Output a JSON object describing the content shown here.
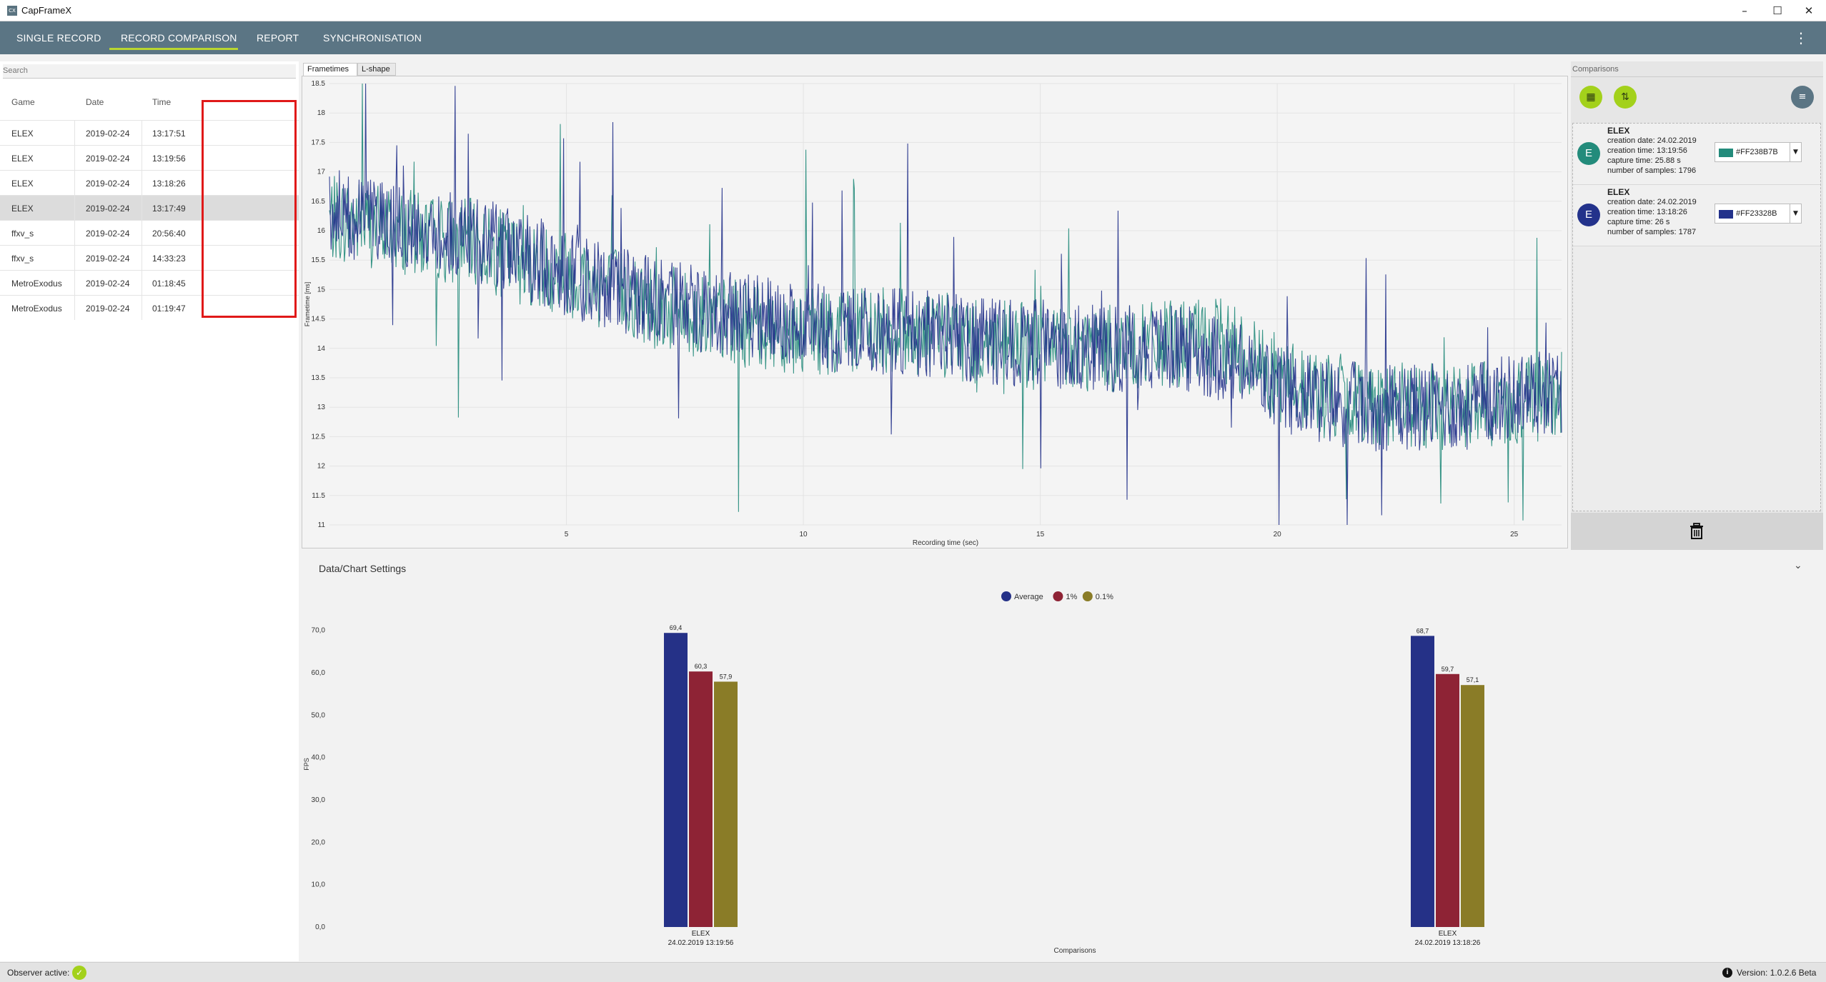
{
  "window": {
    "title": "CapFrameX",
    "icon_text": "CX",
    "minimize": "–",
    "maximize": "☐",
    "close": "✕"
  },
  "nav": {
    "tabs": [
      "SINGLE RECORD",
      "RECORD COMPARISON",
      "REPORT",
      "SYNCHRONISATION"
    ],
    "active_tab": "RECORD COMPARISON",
    "menu_icon": "kebab-menu-icon",
    "accent_color": "#B9D62F"
  },
  "records": {
    "search_placeholder": "Search",
    "columns": [
      "Game",
      "Date",
      "Time"
    ],
    "rows": [
      {
        "game": "ELEX",
        "date": "2019-02-24",
        "time": "13:17:51"
      },
      {
        "game": "ELEX",
        "date": "2019-02-24",
        "time": "13:19:56"
      },
      {
        "game": "ELEX",
        "date": "2019-02-24",
        "time": "13:18:26"
      },
      {
        "game": "ELEX",
        "date": "2019-02-24",
        "time": "13:17:49"
      },
      {
        "game": "ffxv_s",
        "date": "2019-02-24",
        "time": "20:56:40"
      },
      {
        "game": "ffxv_s",
        "date": "2019-02-24",
        "time": "14:33:23"
      },
      {
        "game": "MetroExodus",
        "date": "2019-02-24",
        "time": "01:18:45"
      },
      {
        "game": "MetroExodus",
        "date": "2019-02-24",
        "time": "01:19:47"
      }
    ],
    "selected_row": 3,
    "highlight_color": "#E01919"
  },
  "chart_tabs": [
    "Frametimes",
    "L-shape"
  ],
  "active_chart_tab": "Frametimes",
  "comparisons": {
    "label": "Comparisons",
    "button_icons": [
      "grid-view-icon",
      "swap-icon",
      "clear-list-icon"
    ],
    "items": [
      {
        "avatar": "E",
        "game": "ELEX",
        "creation_date": "creation date: 24.02.2019",
        "creation_time": "creation time: 13:19:56",
        "capture_time": "capture time: 25.88 s",
        "samples": "number of samples: 1796",
        "color_text": "#FF238B7B",
        "color": "#238B7B"
      },
      {
        "avatar": "E",
        "game": "ELEX",
        "creation_date": "creation date: 24.02.2019",
        "creation_time": "creation time: 13:18:26",
        "capture_time": "capture time: 26 s",
        "samples": "number of samples: 1787",
        "color_text": "#FF23328B",
        "color": "#23328B"
      }
    ],
    "delete_icon": "trash-icon"
  },
  "settings": {
    "label": "Data/Chart Settings",
    "chevron": "⌄"
  },
  "status": {
    "observer_label": "Observer active:",
    "check": "✓",
    "info": "i",
    "version": "Version:  1.0.2.6 Beta"
  },
  "chart_data": [
    {
      "type": "line",
      "title": "",
      "xlabel": "Recording time (sec)",
      "ylabel": "Frametime [ms]",
      "xlim": [
        0,
        26
      ],
      "ylim": [
        11,
        18.5
      ],
      "xticks": [
        5,
        10,
        15,
        20,
        25
      ],
      "yticks": [
        11,
        11.5,
        12,
        12.5,
        13,
        13.5,
        14,
        14.5,
        15,
        15.5,
        16,
        16.5,
        17,
        17.5,
        18,
        18.5
      ],
      "grid": true,
      "series": [
        {
          "color": "#238B7B",
          "x": [
            0,
            1,
            2,
            3,
            4,
            5,
            6,
            7,
            8,
            9,
            10,
            11,
            12,
            13,
            14,
            15,
            16,
            17,
            18,
            19,
            20,
            21,
            22,
            23,
            24,
            25,
            26
          ],
          "y": [
            16.2,
            16.1,
            15.9,
            15.8,
            15.5,
            15.3,
            15.0,
            14.7,
            14.5,
            14.4,
            14.3,
            14.3,
            14.3,
            14.2,
            14.1,
            14.0,
            14.0,
            14.0,
            14.1,
            14.1,
            13.5,
            13.2,
            13.1,
            13.0,
            13.0,
            13.1,
            13.2
          ]
        },
        {
          "color": "#23328B",
          "x": [
            0,
            1,
            2,
            3,
            4,
            5,
            6,
            7,
            8,
            9,
            10,
            11,
            12,
            13,
            14,
            15,
            16,
            17,
            18,
            19,
            20,
            21,
            22,
            23,
            24,
            25,
            26
          ],
          "y": [
            16.3,
            16.2,
            16.0,
            15.9,
            15.6,
            15.3,
            15.0,
            14.8,
            14.6,
            14.5,
            14.4,
            14.3,
            14.3,
            14.2,
            14.1,
            14.1,
            14.0,
            14.0,
            14.0,
            13.8,
            13.3,
            13.1,
            13.0,
            13.0,
            13.0,
            13.2,
            13.3
          ]
        }
      ]
    },
    {
      "type": "bar",
      "title": "",
      "xlabel": "Comparisons",
      "ylabel": "FPS",
      "ylim": [
        0,
        75
      ],
      "yticks": [
        "0,0",
        "10,0",
        "20,0",
        "30,0",
        "40,0",
        "50,0",
        "60,0",
        "70,0"
      ],
      "legend_position": "top-center",
      "categories": [
        {
          "name": "ELEX",
          "sub": "24.02.2019 13:19:56"
        },
        {
          "name": "ELEX",
          "sub": "24.02.2019 13:18:26"
        }
      ],
      "series": [
        {
          "name": "Average",
          "color": "#253187",
          "values": [
            69.4,
            68.7
          ],
          "labels": [
            "69,4",
            "68,7"
          ]
        },
        {
          "name": "1%",
          "color": "#8E2335",
          "values": [
            60.3,
            59.7
          ],
          "labels": [
            "60,3",
            "59,7"
          ]
        },
        {
          "name": "0.1%",
          "color": "#8A7C27",
          "values": [
            57.9,
            57.1
          ],
          "labels": [
            "57,9",
            "57,1"
          ]
        }
      ]
    }
  ]
}
